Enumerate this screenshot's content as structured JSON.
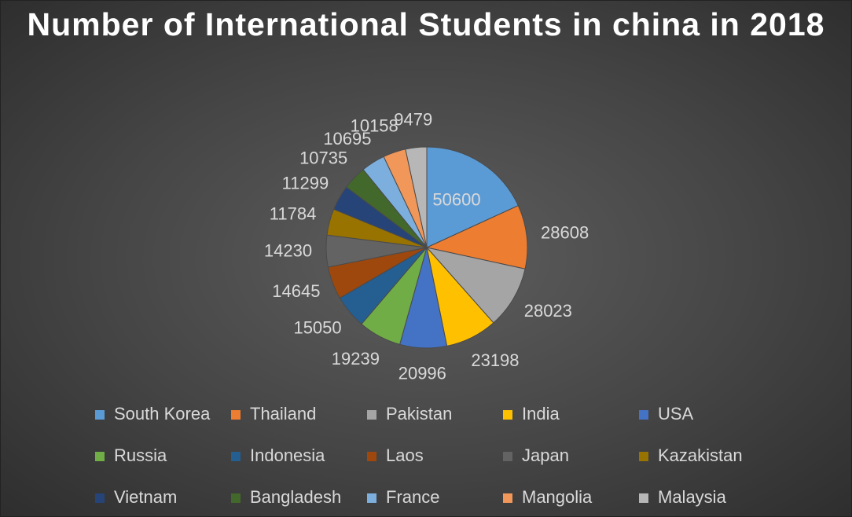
{
  "chart_data": {
    "type": "pie",
    "title": "Number of International Students in china in 2018",
    "categories": [
      "South Korea",
      "Thailand",
      "Pakistan",
      "India",
      "USA",
      "Russia",
      "Indonesia",
      "Laos",
      "Japan",
      "Kazakistan",
      "Vietnam",
      "Bangladesh",
      "France",
      "Mangolia",
      "Malaysia"
    ],
    "values": [
      50600,
      28608,
      28023,
      23198,
      20996,
      19239,
      15050,
      14645,
      14230,
      11784,
      11299,
      10735,
      10695,
      10158,
      9479
    ],
    "colors": [
      "#5b9bd5",
      "#ed7d31",
      "#a5a5a5",
      "#ffc000",
      "#4472c4",
      "#70ad47",
      "#255e91",
      "#9e480e",
      "#636363",
      "#997300",
      "#264478",
      "#43682b",
      "#7cafdd",
      "#f1975a",
      "#b7b7b7"
    ],
    "legend": "bottom"
  }
}
